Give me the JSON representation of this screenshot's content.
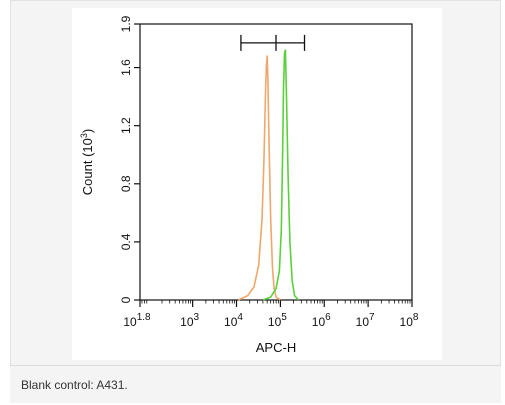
{
  "caption": "Blank control: A431.",
  "chart_data": {
    "type": "line",
    "xlabel": "APC-H",
    "ylabel": "Count",
    "ylabel_unit_base": "10",
    "ylabel_unit_exp": "3",
    "x_scale": "log",
    "xlim": [
      63.1,
      100000000
    ],
    "ylim": [
      0,
      1.9
    ],
    "x_ticks": [
      {
        "base": "10",
        "exp": "1.8"
      },
      {
        "base": "10",
        "exp": "3"
      },
      {
        "base": "10",
        "exp": "4"
      },
      {
        "base": "10",
        "exp": "5"
      },
      {
        "base": "10",
        "exp": "6"
      },
      {
        "base": "10",
        "exp": "7"
      },
      {
        "base": "10",
        "exp": "8"
      }
    ],
    "y_ticks": [
      "0",
      "0.4",
      "0.8",
      "1.2",
      "1.6",
      "1.9"
    ],
    "series": [
      {
        "color": "#f0a76b",
        "x": [
          11000,
          18000,
          25000,
          32000,
          38000,
          42000,
          46000,
          48000,
          50000,
          52000,
          55000,
          60000,
          66000,
          72000,
          80000,
          100000
        ],
        "y": [
          0,
          0.03,
          0.09,
          0.24,
          0.55,
          0.95,
          1.45,
          1.62,
          1.68,
          1.52,
          1.1,
          0.55,
          0.22,
          0.08,
          0.02,
          0
        ]
      },
      {
        "color": "#5ad13c",
        "x": [
          40000,
          60000,
          80000,
          95000,
          105000,
          112000,
          118000,
          124000,
          130000,
          138000,
          150000,
          165000,
          185000,
          210000,
          260000
        ],
        "y": [
          0,
          0.02,
          0.08,
          0.2,
          0.48,
          0.95,
          1.45,
          1.7,
          1.72,
          1.4,
          0.85,
          0.4,
          0.14,
          0.03,
          0
        ]
      }
    ],
    "gate": {
      "x_start": 12600,
      "x_end": 354800,
      "x_mid": 79400,
      "y": 1.77
    }
  }
}
